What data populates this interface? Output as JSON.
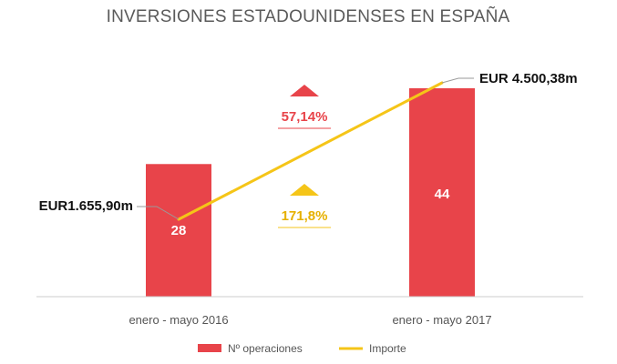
{
  "chart_data": {
    "type": "bar",
    "title": "INVERSIONES ESTADOUNIDENSES EN ESPAÑA",
    "categories": [
      "enero - mayo 2016",
      "enero - mayo 2017"
    ],
    "series": [
      {
        "name": "Nº operaciones",
        "type": "bar",
        "values": [
          28,
          44
        ],
        "labels": [
          "28",
          "44"
        ],
        "color": "#e8444a"
      },
      {
        "name": "Importe",
        "type": "line",
        "values": [
          1655.9,
          4500.38
        ],
        "unit": "EUR millones",
        "labels": [
          "EUR1.655,90m",
          "EUR 4.500,38m"
        ],
        "color": "#f5c518"
      }
    ],
    "annotations": [
      {
        "text": "57,14%",
        "series": "Nº operaciones",
        "direction": "up",
        "color": "#e8444a"
      },
      {
        "text": "171,8%",
        "series": "Importe",
        "direction": "up",
        "color": "#f5c518"
      }
    ],
    "grid": false,
    "legend_position": "bottom"
  }
}
